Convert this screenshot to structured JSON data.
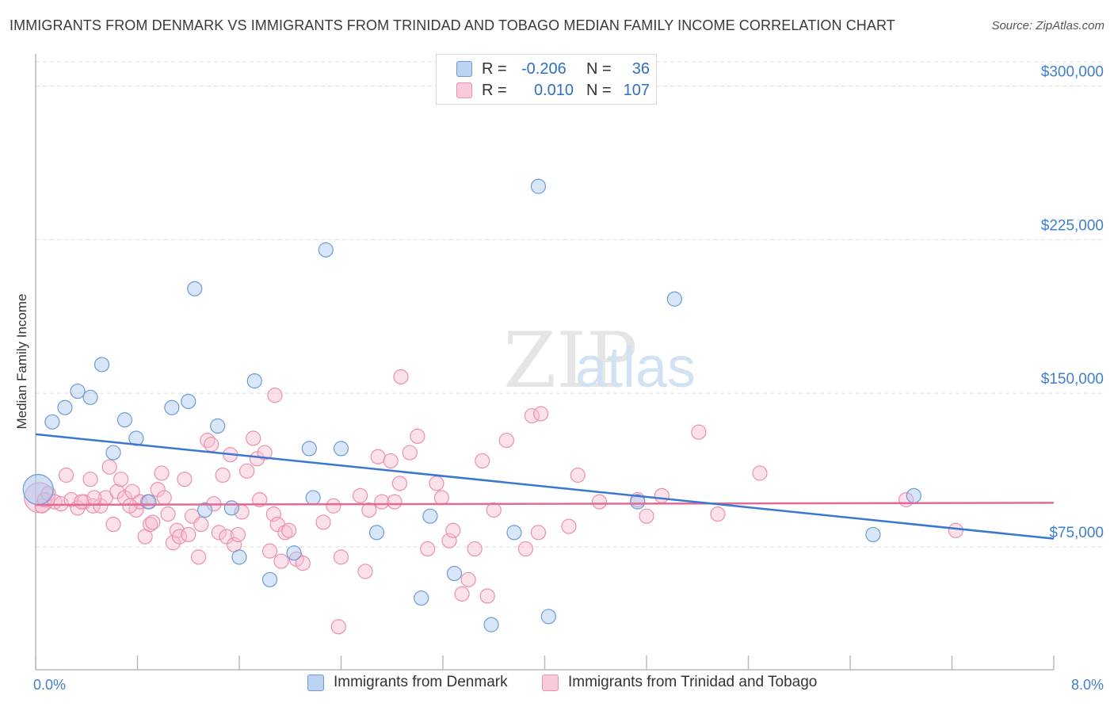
{
  "title": "IMMIGRANTS FROM DENMARK VS IMMIGRANTS FROM TRINIDAD AND TOBAGO MEDIAN FAMILY INCOME CORRELATION CHART",
  "source": "Source: ZipAtlas.com",
  "watermark": {
    "zip": "ZIP",
    "atlas": "atlas"
  },
  "legend": {
    "denmark": {
      "r_label": "R =",
      "r_value": "-0.206",
      "n_label": "N =",
      "n_value": "36"
    },
    "trinidad": {
      "r_label": "R =",
      "r_value": "0.010",
      "n_label": "N =",
      "n_value": "107"
    }
  },
  "colors": {
    "denmark_fill": "#a9c8ef",
    "denmark_stroke": "#6b9bd8",
    "denmark_line": "#3a77d0",
    "trinidad_fill": "#f6bfd1",
    "trinidad_stroke": "#ec8fb0",
    "trinidad_line": "#e06a98",
    "tick_text": "#3f7fd0",
    "grid": "#dedede"
  },
  "chart_data": {
    "type": "scatter",
    "title": "IMMIGRANTS FROM DENMARK VS IMMIGRANTS FROM TRINIDAD AND TOBAGO MEDIAN FAMILY INCOME CORRELATION CHART",
    "xlabel": "",
    "ylabel": "Median Family Income",
    "xlim": [
      0,
      8
    ],
    "ylim": [
      15000,
      318000
    ],
    "x_tick_labels": {
      "min": "0.0%",
      "max": "8.0%"
    },
    "y_ticks": [
      {
        "value": 75000,
        "label": "$75,000"
      },
      {
        "value": 150000,
        "label": "$150,000"
      },
      {
        "value": 225000,
        "label": "$225,000"
      },
      {
        "value": 300000,
        "label": "$300,000"
      }
    ],
    "series": [
      {
        "name": "Immigrants from Denmark",
        "trend": {
          "x": [
            0,
            8
          ],
          "y": [
            130000,
            79000
          ]
        },
        "points": [
          [
            0.02,
            103000,
            "large"
          ],
          [
            0.13,
            136000
          ],
          [
            0.23,
            143000
          ],
          [
            0.33,
            151000
          ],
          [
            0.43,
            148000
          ],
          [
            0.52,
            164000
          ],
          [
            0.61,
            121000
          ],
          [
            0.7,
            137000
          ],
          [
            0.79,
            128000
          ],
          [
            0.89,
            97000
          ],
          [
            1.07,
            143000
          ],
          [
            1.2,
            146000
          ],
          [
            1.25,
            201000
          ],
          [
            1.33,
            93000
          ],
          [
            1.43,
            134000
          ],
          [
            1.54,
            94000
          ],
          [
            1.6,
            70000
          ],
          [
            1.72,
            156000
          ],
          [
            1.84,
            59000
          ],
          [
            2.03,
            72000
          ],
          [
            2.15,
            123000
          ],
          [
            2.18,
            99000
          ],
          [
            2.28,
            220000
          ],
          [
            2.4,
            123000
          ],
          [
            2.68,
            82000
          ],
          [
            3.03,
            50000
          ],
          [
            3.1,
            90000
          ],
          [
            3.29,
            62000
          ],
          [
            3.58,
            37000
          ],
          [
            3.76,
            82000
          ],
          [
            3.95,
            251000
          ],
          [
            4.03,
            41000
          ],
          [
            4.73,
            97000
          ],
          [
            5.02,
            196000
          ],
          [
            6.58,
            81000
          ],
          [
            6.9,
            100000
          ]
        ]
      },
      {
        "name": "Immigrants from Trinidad and Tobago",
        "trend": {
          "x": [
            0,
            8
          ],
          "y": [
            95500,
            96500
          ]
        },
        "points": [
          [
            0.03,
            99000,
            "large"
          ],
          [
            0.05,
            95000
          ],
          [
            0.07,
            98000
          ],
          [
            0.1,
            101000
          ],
          [
            0.15,
            97000
          ],
          [
            0.2,
            96000
          ],
          [
            0.24,
            110000
          ],
          [
            0.28,
            98000
          ],
          [
            0.33,
            94000
          ],
          [
            0.38,
            97000
          ],
          [
            0.43,
            108000
          ],
          [
            0.45,
            95000
          ],
          [
            0.51,
            95000
          ],
          [
            0.55,
            99000
          ],
          [
            0.58,
            114000
          ],
          [
            0.61,
            86000
          ],
          [
            0.64,
            102000
          ],
          [
            0.67,
            108000
          ],
          [
            0.7,
            99000
          ],
          [
            0.76,
            102000
          ],
          [
            0.79,
            93000
          ],
          [
            0.82,
            97000
          ],
          [
            0.86,
            80000
          ],
          [
            0.88,
            97000
          ],
          [
            0.9,
            86000
          ],
          [
            0.92,
            87000
          ],
          [
            0.96,
            103000
          ],
          [
            0.99,
            111000
          ],
          [
            1.01,
            99000
          ],
          [
            1.04,
            91000
          ],
          [
            1.08,
            77000
          ],
          [
            1.11,
            83000
          ],
          [
            1.13,
            80000
          ],
          [
            1.17,
            108000
          ],
          [
            1.2,
            81000
          ],
          [
            1.23,
            90000
          ],
          [
            1.28,
            70000
          ],
          [
            1.3,
            86000
          ],
          [
            1.35,
            127000
          ],
          [
            1.38,
            125000
          ],
          [
            1.44,
            82000
          ],
          [
            1.47,
            110000
          ],
          [
            1.5,
            80000
          ],
          [
            1.53,
            120000
          ],
          [
            1.56,
            76000
          ],
          [
            1.59,
            81000
          ],
          [
            1.62,
            92000
          ],
          [
            1.66,
            112000
          ],
          [
            1.71,
            128000
          ],
          [
            1.74,
            118000
          ],
          [
            1.76,
            98000
          ],
          [
            1.8,
            121000
          ],
          [
            1.84,
            73000
          ],
          [
            1.87,
            91000
          ],
          [
            1.9,
            86000
          ],
          [
            1.93,
            68000
          ],
          [
            1.96,
            82000
          ],
          [
            1.99,
            83000
          ],
          [
            2.05,
            69000
          ],
          [
            2.1,
            67000
          ],
          [
            2.26,
            87000
          ],
          [
            2.34,
            95000
          ],
          [
            2.38,
            36000
          ],
          [
            2.4,
            70000
          ],
          [
            2.55,
            100000
          ],
          [
            2.59,
            63000
          ],
          [
            2.62,
            93000
          ],
          [
            2.69,
            119000
          ],
          [
            2.72,
            97000
          ],
          [
            2.79,
            117000
          ],
          [
            2.82,
            97000
          ],
          [
            2.86,
            106000
          ],
          [
            2.94,
            121000
          ],
          [
            3.0,
            129000
          ],
          [
            3.08,
            74000
          ],
          [
            3.15,
            106000
          ],
          [
            3.19,
            99000
          ],
          [
            3.25,
            78000
          ],
          [
            3.28,
            83000
          ],
          [
            3.35,
            52000
          ],
          [
            3.4,
            59000
          ],
          [
            3.45,
            74000
          ],
          [
            3.51,
            117000
          ],
          [
            3.55,
            51000
          ],
          [
            3.6,
            93000
          ],
          [
            3.7,
            127000
          ],
          [
            3.85,
            74000
          ],
          [
            3.9,
            139000
          ],
          [
            3.97,
            140000
          ],
          [
            3.95,
            82000
          ],
          [
            4.19,
            85000
          ],
          [
            4.26,
            110000
          ],
          [
            4.43,
            97000
          ],
          [
            4.73,
            98000
          ],
          [
            4.8,
            90000
          ],
          [
            4.92,
            100000
          ],
          [
            5.21,
            131000
          ],
          [
            5.36,
            91000
          ],
          [
            5.69,
            111000
          ],
          [
            6.84,
            98000
          ],
          [
            7.23,
            83000
          ],
          [
            2.87,
            158000
          ],
          [
            1.88,
            149000
          ],
          [
            0.36,
            97000
          ],
          [
            0.46,
            99000
          ],
          [
            0.74,
            95000
          ],
          [
            1.4,
            96000
          ]
        ]
      }
    ]
  },
  "bottom_legend": {
    "denmark": "Immigrants from Denmark",
    "trinidad": "Immigrants from Trinidad and Tobago"
  }
}
